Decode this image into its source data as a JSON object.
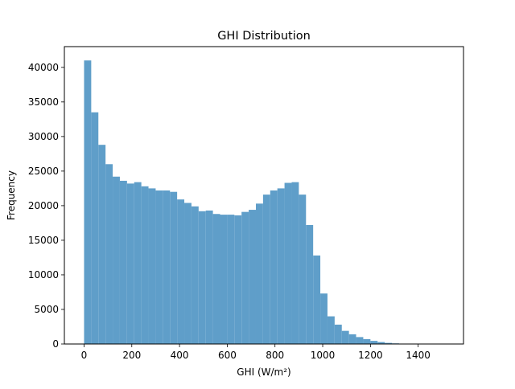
{
  "chart_data": {
    "type": "bar",
    "title": "GHI Distribution",
    "xlabel": "GHI (W/m²)",
    "ylabel": "Frequency",
    "xlim": [
      -82.5,
      1590
    ],
    "ylim": [
      0,
      43000
    ],
    "bin_start": 0,
    "bin_width": 30,
    "x_ticks": [
      0,
      200,
      400,
      600,
      800,
      1000,
      1200,
      1400
    ],
    "y_ticks": [
      0,
      5000,
      10000,
      15000,
      20000,
      25000,
      30000,
      35000,
      40000
    ],
    "bar_color": "#5f9ec9",
    "grid": false,
    "legend": "none",
    "values": [
      41000,
      33500,
      28800,
      26000,
      24200,
      23600,
      23200,
      23400,
      22800,
      22500,
      22200,
      22200,
      22000,
      20900,
      20400,
      19900,
      19200,
      19300,
      18800,
      18700,
      18700,
      18600,
      19100,
      19400,
      20300,
      21600,
      22200,
      22500,
      23300,
      23400,
      21600,
      17200,
      12800,
      7300,
      4000,
      2800,
      1900,
      1400,
      1000,
      700,
      450,
      280,
      160,
      90,
      50,
      30,
      15,
      8,
      4,
      2
    ]
  }
}
